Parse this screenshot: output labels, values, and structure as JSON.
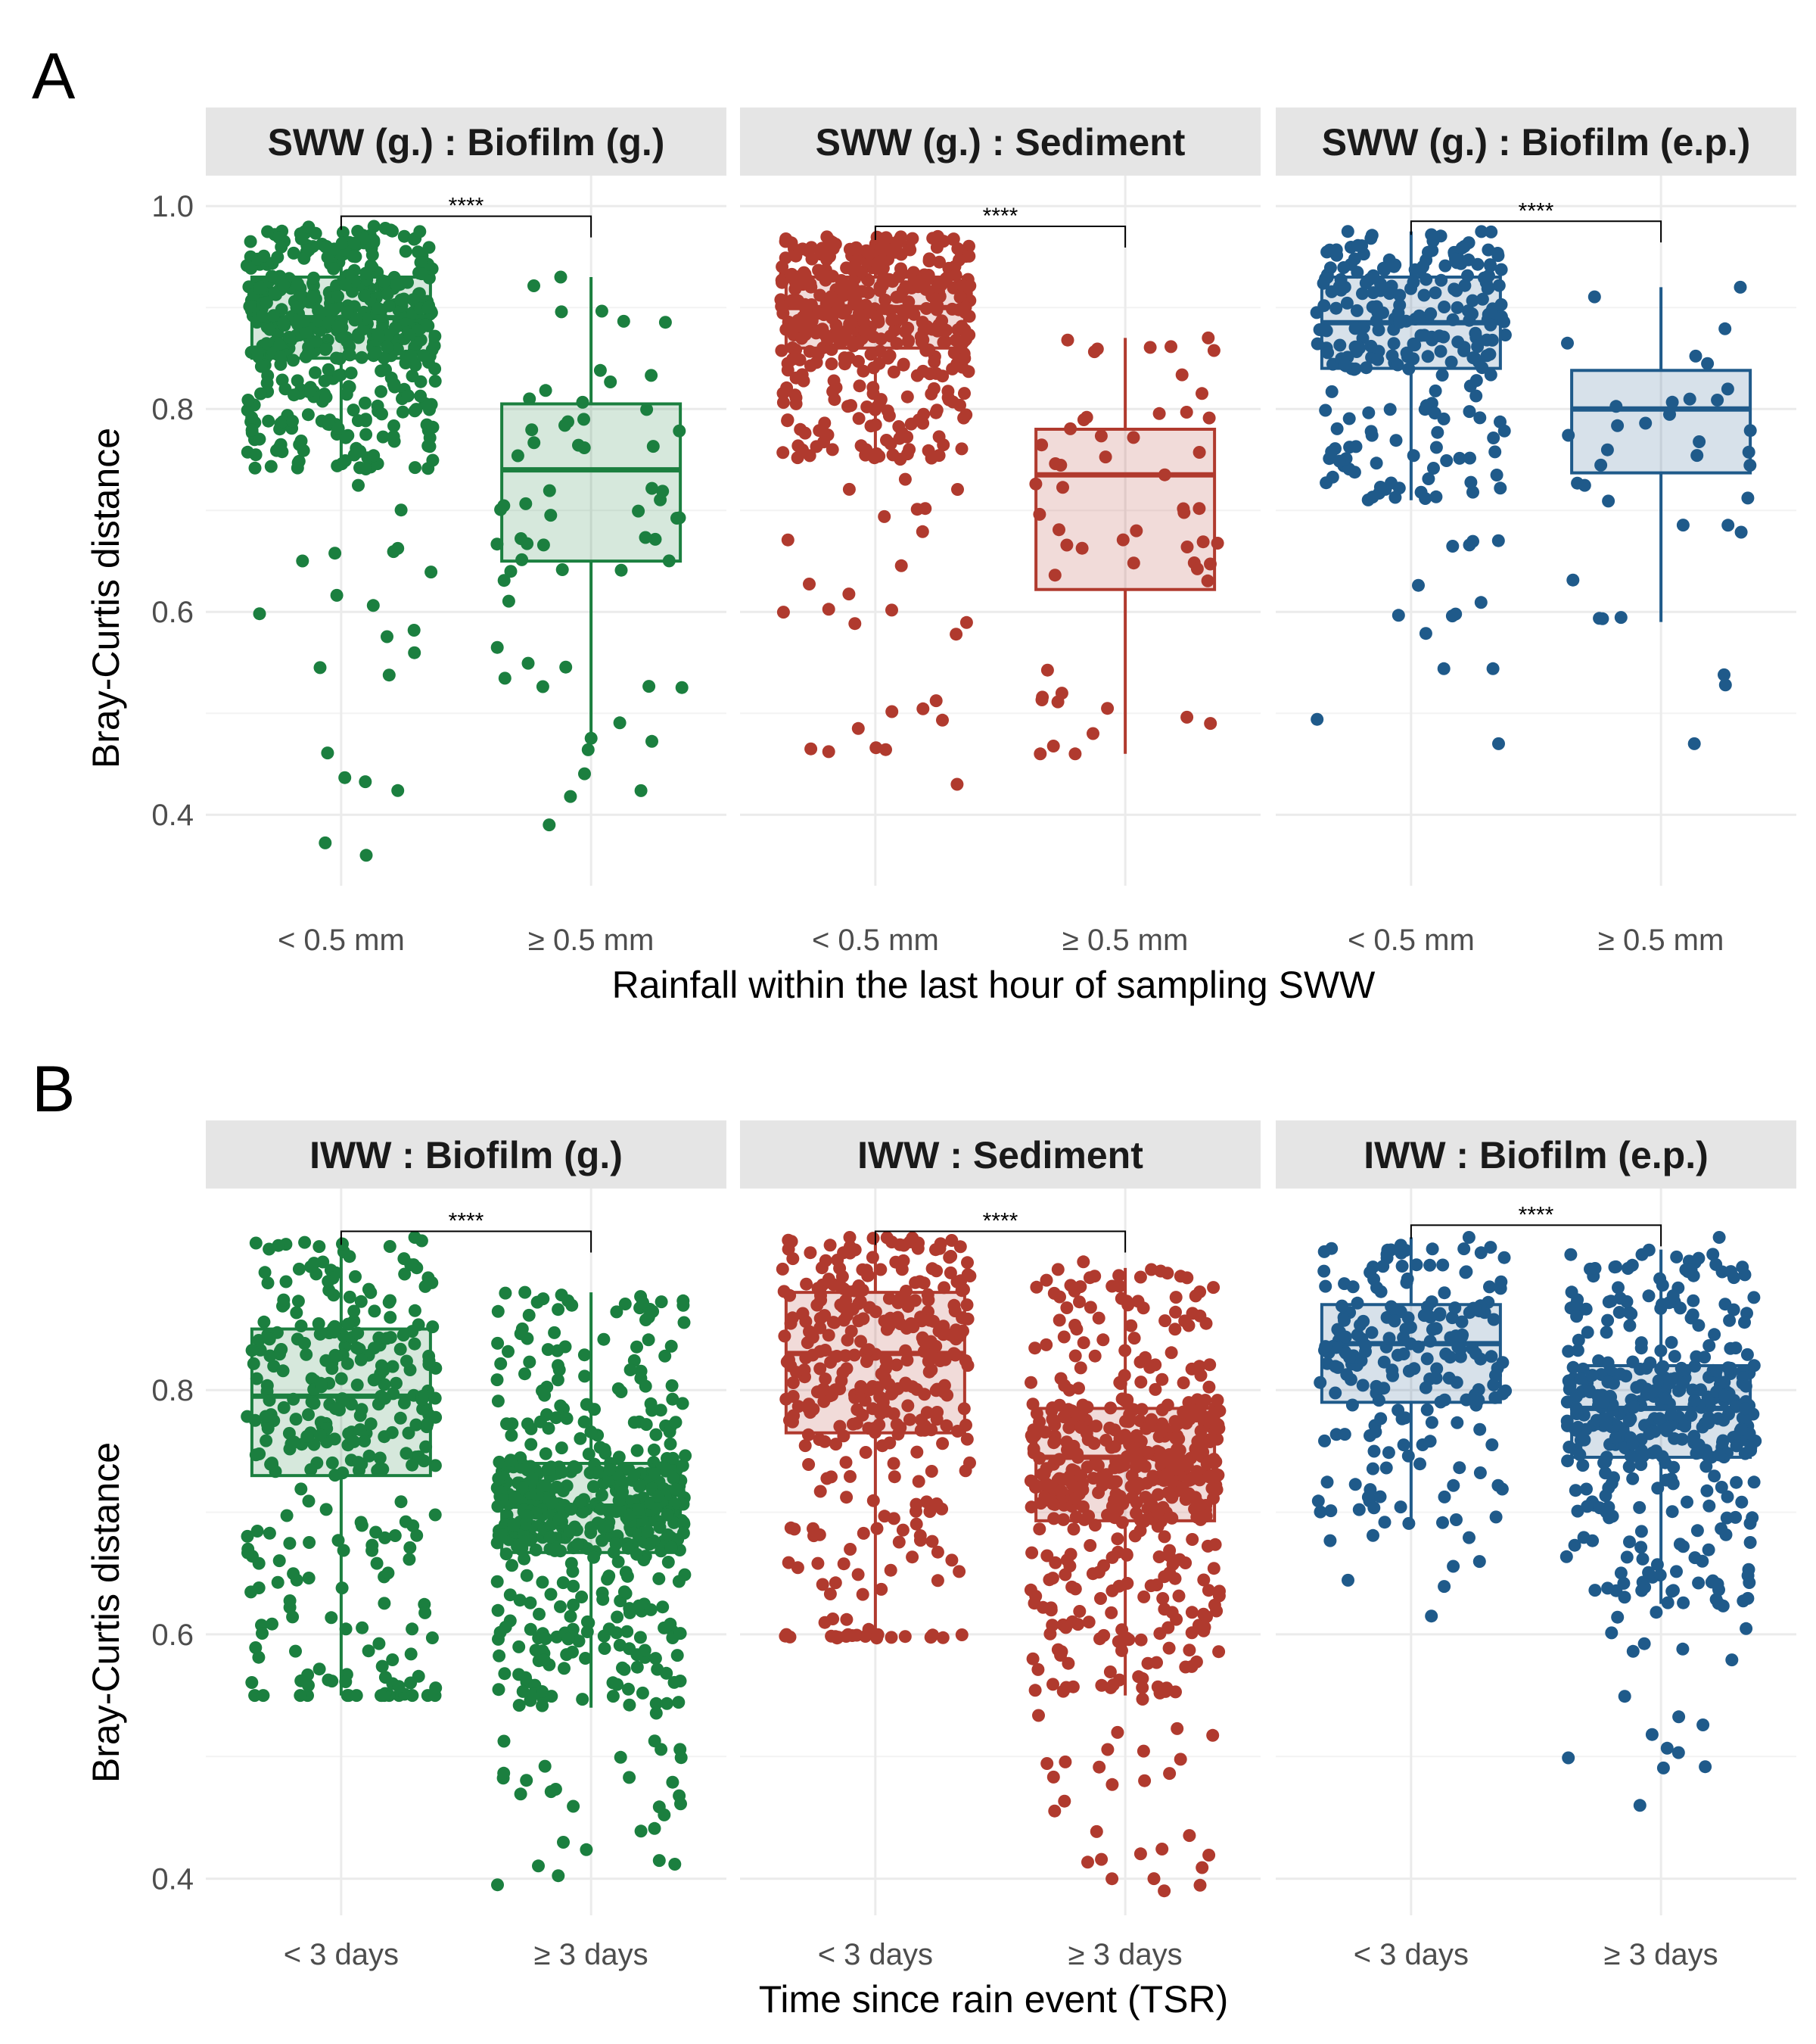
{
  "colors": {
    "green": "#1b7f3f",
    "red": "#b03a2e",
    "blue": "#1f5a8a"
  },
  "figure": {
    "panel_a_letter": "A",
    "panel_b_letter": "B",
    "ylabel": "Bray-Curtis distance",
    "panel_a_xlabel": "Rainfall within the last hour of sampling SWW",
    "panel_b_xlabel": "Time since rain event (TSR)"
  },
  "chart_data": [
    {
      "type": "box",
      "panel": "A",
      "ylim": [
        0.33,
        1.03
      ],
      "y_ticks": [
        0.4,
        0.6,
        0.8,
        1.0
      ],
      "y_tick_labels": [
        "0.4",
        "0.6",
        "0.8",
        "1.0"
      ],
      "categories": [
        "< 0.5 mm",
        "≥ 0.5 mm"
      ],
      "facets": [
        {
          "title": "SWW (g.) : Biofilm (g.)",
          "color_key": "green",
          "significance": "****",
          "bracket_y": 0.99,
          "boxes": [
            {
              "category": "< 0.5 mm",
              "q1": 0.85,
              "median": 0.89,
              "q3": 0.93,
              "whisker_low": 0.74,
              "whisker_high": 0.98,
              "n_points": 500,
              "y_min": 0.36,
              "y_max": 0.98
            },
            {
              "category": "≥ 0.5 mm",
              "q1": 0.65,
              "median": 0.74,
              "q3": 0.805,
              "whisker_low": 0.47,
              "whisker_high": 0.93,
              "n_points": 62,
              "y_min": 0.39,
              "y_max": 0.93
            }
          ]
        },
        {
          "title": "SWW (g.) : Sediment",
          "color_key": "red",
          "significance": "****",
          "bracket_y": 0.98,
          "boxes": [
            {
              "category": "< 0.5 mm",
              "q1": 0.86,
              "median": 0.9,
              "q3": 0.93,
              "whisker_low": 0.75,
              "whisker_high": 0.97,
              "n_points": 450,
              "y_min": 0.43,
              "y_max": 0.97
            },
            {
              "category": "≥ 0.5 mm",
              "q1": 0.622,
              "median": 0.735,
              "q3": 0.78,
              "whisker_low": 0.46,
              "whisker_high": 0.87,
              "n_points": 55,
              "y_min": 0.46,
              "y_max": 0.87
            }
          ]
        },
        {
          "title": "SWW (g.) : Biofilm (e.p.)",
          "color_key": "blue",
          "significance": "****",
          "bracket_y": 0.985,
          "boxes": [
            {
              "category": "< 0.5 mm",
              "q1": 0.84,
              "median": 0.885,
              "q3": 0.93,
              "whisker_low": 0.71,
              "whisker_high": 0.975,
              "n_points": 260,
              "y_min": 0.47,
              "y_max": 0.975
            },
            {
              "category": "≥ 0.5 mm",
              "q1": 0.737,
              "median": 0.8,
              "q3": 0.838,
              "whisker_low": 0.59,
              "whisker_high": 0.92,
              "n_points": 36,
              "y_min": 0.47,
              "y_max": 0.92
            }
          ]
        }
      ]
    },
    {
      "type": "box",
      "panel": "B",
      "ylim": [
        0.37,
        0.965
      ],
      "y_ticks": [
        0.4,
        0.6,
        0.8
      ],
      "y_tick_labels": [
        "0.4",
        "0.6",
        "0.8"
      ],
      "categories": [
        "< 3 days",
        "≥ 3 days"
      ],
      "facets": [
        {
          "title": "IWW : Biofilm (g.)",
          "color_key": "green",
          "significance": "****",
          "bracket_y": 0.93,
          "boxes": [
            {
              "category": "< 3 days",
              "q1": 0.73,
              "median": 0.795,
              "q3": 0.85,
              "whisker_low": 0.55,
              "whisker_high": 0.925,
              "n_points": 320,
              "y_min": 0.55,
              "y_max": 0.925
            },
            {
              "category": "≥ 3 days",
              "q1": 0.667,
              "median": 0.705,
              "q3": 0.74,
              "whisker_low": 0.54,
              "whisker_high": 0.88,
              "n_points": 560,
              "y_min": 0.395,
              "y_max": 0.88
            }
          ]
        },
        {
          "title": "IWW : Sediment",
          "color_key": "red",
          "significance": "****",
          "bracket_y": 0.93,
          "boxes": [
            {
              "category": "< 3 days",
              "q1": 0.765,
              "median": 0.83,
              "q3": 0.88,
              "whisker_low": 0.6,
              "whisker_high": 0.925,
              "n_points": 360,
              "y_min": 0.597,
              "y_max": 0.925
            },
            {
              "category": "≥ 3 days",
              "q1": 0.693,
              "median": 0.745,
              "q3": 0.785,
              "whisker_low": 0.55,
              "whisker_high": 0.9,
              "n_points": 520,
              "y_min": 0.39,
              "y_max": 0.905
            }
          ]
        },
        {
          "title": "IWW : Biofilm (e.p.)",
          "color_key": "blue",
          "significance": "****",
          "bracket_y": 0.935,
          "boxes": [
            {
              "category": "< 3 days",
              "q1": 0.79,
              "median": 0.838,
              "q3": 0.87,
              "whisker_low": 0.69,
              "whisker_high": 0.925,
              "n_points": 210,
              "y_min": 0.615,
              "y_max": 0.925
            },
            {
              "category": "≥ 3 days",
              "q1": 0.745,
              "median": 0.785,
              "q3": 0.82,
              "whisker_low": 0.625,
              "whisker_high": 0.915,
              "n_points": 420,
              "y_min": 0.46,
              "y_max": 0.925
            }
          ]
        }
      ]
    }
  ]
}
